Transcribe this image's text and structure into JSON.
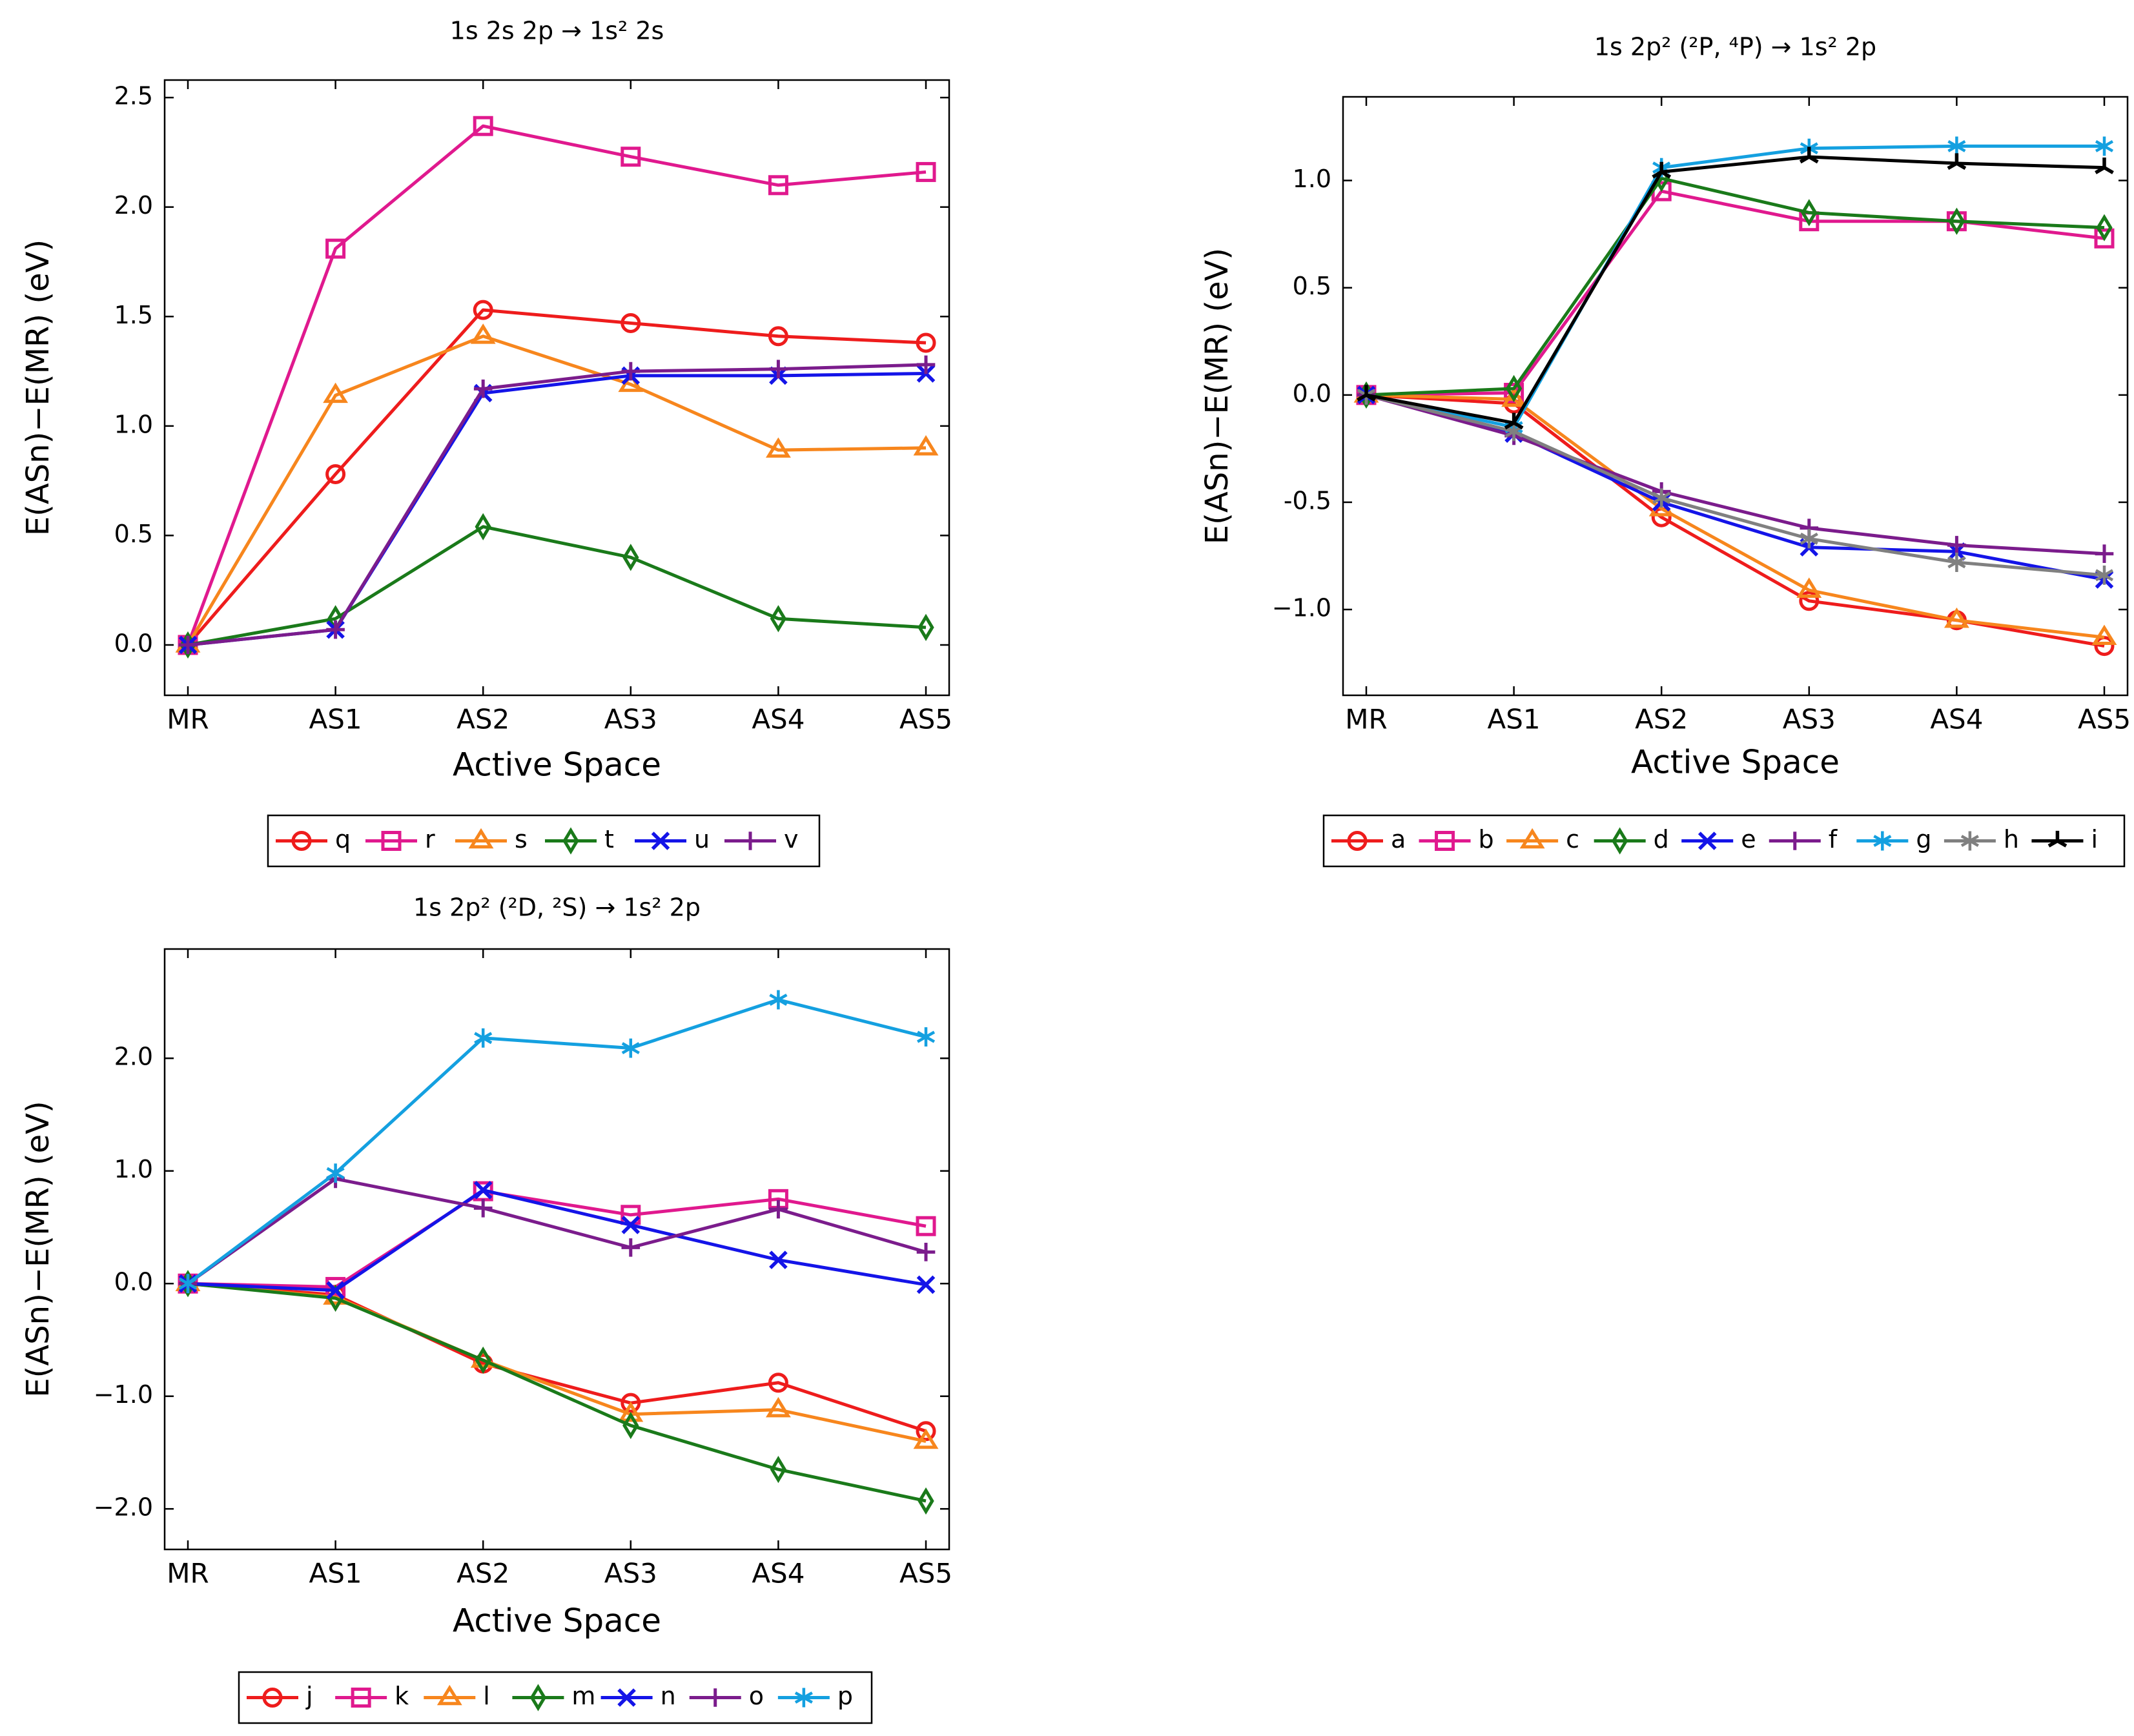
{
  "chart_data": [
    {
      "type": "line",
      "title": "1s 2s 2p → 1s² 2s",
      "xlabel": "Active Space",
      "ylabel": "E(ASn)−E(MR) (eV)",
      "categories": [
        "MR",
        "AS1",
        "AS2",
        "AS3",
        "AS4",
        "AS5"
      ],
      "ylim": [
        -0.23,
        2.58
      ],
      "yticks": [
        0.0,
        0.5,
        1.0,
        1.5,
        2.0,
        2.5
      ],
      "ytick_labels": [
        "0.0",
        "0.5",
        "1.0",
        "1.5",
        "2.0",
        "2.5"
      ],
      "legend_position": "bottom-center",
      "series": [
        {
          "name": "q",
          "color": "#ee1c1c",
          "marker": "circle",
          "values": [
            0,
            0.78,
            1.53,
            1.47,
            1.41,
            1.38
          ]
        },
        {
          "name": "r",
          "color": "#e0198e",
          "marker": "square",
          "values": [
            0,
            1.81,
            2.37,
            2.23,
            2.1,
            2.16
          ]
        },
        {
          "name": "s",
          "color": "#f7861d",
          "marker": "triangle",
          "values": [
            0,
            1.14,
            1.41,
            1.19,
            0.89,
            0.9
          ]
        },
        {
          "name": "t",
          "color": "#1a7a1a",
          "marker": "diamond",
          "values": [
            0,
            0.12,
            0.54,
            0.4,
            0.12,
            0.08
          ]
        },
        {
          "name": "u",
          "color": "#1414e8",
          "marker": "x",
          "values": [
            0,
            0.07,
            1.15,
            1.23,
            1.23,
            1.24
          ]
        },
        {
          "name": "v",
          "color": "#7b1c8c",
          "marker": "plus",
          "values": [
            0,
            0.07,
            1.17,
            1.25,
            1.26,
            1.28
          ]
        }
      ]
    },
    {
      "type": "line",
      "title": "1s 2p² (²P, ⁴P) → 1s² 2p",
      "xlabel": "Active Space",
      "ylabel": "E(ASn)−E(MR) (eV)",
      "categories": [
        "MR",
        "AS1",
        "AS2",
        "AS3",
        "AS4",
        "AS5"
      ],
      "ylim": [
        -1.4,
        1.39
      ],
      "yticks": [
        -1.0,
        -0.5,
        0.0,
        0.5,
        1.0
      ],
      "ytick_labels": [
        "−1.0",
        "-0.5",
        "0.0",
        "0.5",
        "1.0"
      ],
      "legend_position": "bottom-center",
      "series": [
        {
          "name": "a",
          "color": "#ee1c1c",
          "marker": "circle",
          "values": [
            0,
            -0.04,
            -0.57,
            -0.96,
            -1.05,
            -1.17
          ]
        },
        {
          "name": "b",
          "color": "#e0198e",
          "marker": "square",
          "values": [
            0,
            0.01,
            0.95,
            0.81,
            0.81,
            0.73
          ]
        },
        {
          "name": "c",
          "color": "#f7861d",
          "marker": "triangle",
          "values": [
            0,
            -0.02,
            -0.53,
            -0.91,
            -1.05,
            -1.13
          ]
        },
        {
          "name": "d",
          "color": "#1a7a1a",
          "marker": "diamond",
          "values": [
            0,
            0.03,
            1.01,
            0.85,
            0.81,
            0.78
          ]
        },
        {
          "name": "e",
          "color": "#1414e8",
          "marker": "x",
          "values": [
            0,
            -0.18,
            -0.5,
            -0.71,
            -0.73,
            -0.86
          ]
        },
        {
          "name": "f",
          "color": "#7b1c8c",
          "marker": "plus",
          "values": [
            0,
            -0.19,
            -0.45,
            -0.62,
            -0.7,
            -0.74
          ]
        },
        {
          "name": "g",
          "color": "#14a0e0",
          "marker": "asterisk",
          "values": [
            0,
            -0.15,
            1.06,
            1.15,
            1.16,
            1.16
          ]
        },
        {
          "name": "h",
          "color": "#808080",
          "marker": "asterisk",
          "values": [
            0,
            -0.17,
            -0.48,
            -0.67,
            -0.78,
            -0.84
          ]
        },
        {
          "name": "i",
          "color": "#000000",
          "marker": "tristar",
          "values": [
            0,
            -0.13,
            1.04,
            1.11,
            1.08,
            1.06
          ]
        }
      ]
    },
    {
      "type": "line",
      "title": "1s 2p² (²D, ²S) → 1s² 2p",
      "xlabel": "Active Space",
      "ylabel": "E(ASn)−E(MR) (eV)",
      "categories": [
        "MR",
        "AS1",
        "AS2",
        "AS3",
        "AS4",
        "AS5"
      ],
      "ylim": [
        -2.36,
        2.97
      ],
      "yticks": [
        -2.0,
        -1.0,
        0.0,
        1.0,
        2.0
      ],
      "ytick_labels": [
        "−2.0",
        "−1.0",
        "0.0",
        "1.0",
        "2.0"
      ],
      "legend_position": "bottom-center",
      "series": [
        {
          "name": "j",
          "color": "#ee1c1c",
          "marker": "circle",
          "values": [
            0,
            -0.1,
            -0.71,
            -1.06,
            -0.88,
            -1.31
          ]
        },
        {
          "name": "k",
          "color": "#e0198e",
          "marker": "square",
          "values": [
            0,
            -0.03,
            0.82,
            0.61,
            0.75,
            0.51
          ]
        },
        {
          "name": "l",
          "color": "#f7861d",
          "marker": "triangle",
          "values": [
            0,
            -0.12,
            -0.68,
            -1.16,
            -1.12,
            -1.4
          ]
        },
        {
          "name": "m",
          "color": "#1a7a1a",
          "marker": "diamond",
          "values": [
            0,
            -0.13,
            -0.68,
            -1.26,
            -1.65,
            -1.93
          ]
        },
        {
          "name": "n",
          "color": "#1414e8",
          "marker": "x",
          "values": [
            0,
            -0.06,
            0.83,
            0.52,
            0.21,
            -0.01
          ]
        },
        {
          "name": "o",
          "color": "#7b1c8c",
          "marker": "plus",
          "values": [
            0,
            0.93,
            0.67,
            0.32,
            0.66,
            0.28
          ]
        },
        {
          "name": "p",
          "color": "#14a0e0",
          "marker": "asterisk",
          "values": [
            0,
            0.98,
            2.18,
            2.09,
            2.52,
            2.19
          ]
        }
      ]
    }
  ]
}
